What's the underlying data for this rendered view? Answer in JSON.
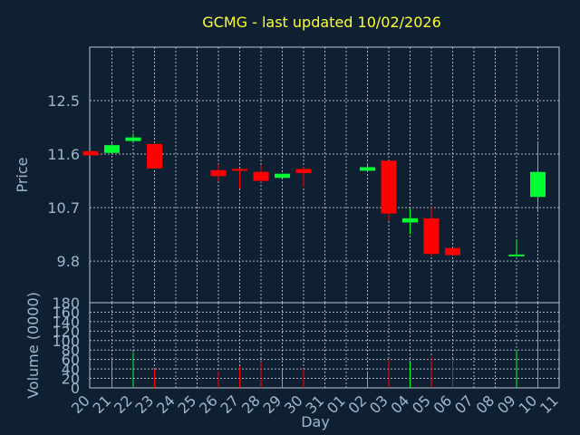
{
  "chart_data": {
    "type": "candlestick",
    "title": "GCMG - last updated 10/02/2026",
    "xlabel": "Day",
    "price_ylabel": "Price",
    "volume_ylabel": "Volume (0000)",
    "x_ticks": [
      "20",
      "21",
      "22",
      "23",
      "24",
      "25",
      "26",
      "27",
      "28",
      "29",
      "30",
      "31",
      "01",
      "02",
      "03",
      "04",
      "05",
      "06",
      "07",
      "08",
      "09",
      "10",
      "11"
    ],
    "price_ylim": [
      9.1,
      13.4
    ],
    "price_ticks": [
      "12.5",
      "11.6",
      "10.7",
      "9.8"
    ],
    "price_tick_values": [
      12.5,
      11.6,
      10.7,
      9.8
    ],
    "volume_ylim": [
      0,
      180
    ],
    "volume_ticks": [
      "0",
      "20",
      "40",
      "60",
      "80",
      "100",
      "120",
      "140",
      "160",
      "180"
    ],
    "colors": {
      "up": "#00ff33",
      "down": "#ff0000",
      "background": "#0f2033",
      "title": "#ffff33",
      "axis": "#9eb6d0"
    },
    "series": [
      {
        "day": "20",
        "open": 11.65,
        "high": 11.65,
        "low": 11.58,
        "close": 11.58,
        "volume": 0
      },
      {
        "day": "21",
        "open": 11.62,
        "high": 11.78,
        "low": 11.6,
        "close": 11.75,
        "volume": 65
      },
      {
        "day": "22",
        "open": 11.82,
        "high": 11.95,
        "low": 11.8,
        "close": 11.88,
        "volume": 75
      },
      {
        "day": "23",
        "open": 11.77,
        "high": 11.77,
        "low": 11.36,
        "close": 11.36,
        "volume": 40
      },
      {
        "day": "26",
        "open": 11.33,
        "high": 11.43,
        "low": 11.14,
        "close": 11.23,
        "volume": 35
      },
      {
        "day": "27",
        "open": 11.35,
        "high": 11.36,
        "low": 11.02,
        "close": 11.33,
        "volume": 45
      },
      {
        "day": "28",
        "open": 11.3,
        "high": 11.42,
        "low": 11.13,
        "close": 11.15,
        "volume": 55
      },
      {
        "day": "29",
        "open": 11.2,
        "high": 11.27,
        "low": 11.2,
        "close": 11.27,
        "volume": 40
      },
      {
        "day": "30",
        "open": 11.35,
        "high": 11.38,
        "low": 11.04,
        "close": 11.28,
        "volume": 40
      },
      {
        "day": "02",
        "open": 11.32,
        "high": 11.45,
        "low": 11.3,
        "close": 11.38,
        "volume": 35
      },
      {
        "day": "03",
        "open": 11.49,
        "high": 11.49,
        "low": 10.47,
        "close": 10.6,
        "volume": 60
      },
      {
        "day": "04",
        "open": 10.45,
        "high": 10.68,
        "low": 10.25,
        "close": 10.52,
        "volume": 55
      },
      {
        "day": "05",
        "open": 10.52,
        "high": 10.71,
        "low": 9.88,
        "close": 9.92,
        "volume": 65
      },
      {
        "day": "06",
        "open": 10.02,
        "high": 10.02,
        "low": 9.9,
        "close": 9.9,
        "volume": 60
      },
      {
        "day": "09",
        "open": 9.91,
        "high": 10.17,
        "low": 9.89,
        "close": 9.91,
        "volume": 80
      },
      {
        "day": "10",
        "open": 10.88,
        "high": 11.82,
        "low": 10.64,
        "close": 11.3,
        "volume": 160
      }
    ]
  }
}
